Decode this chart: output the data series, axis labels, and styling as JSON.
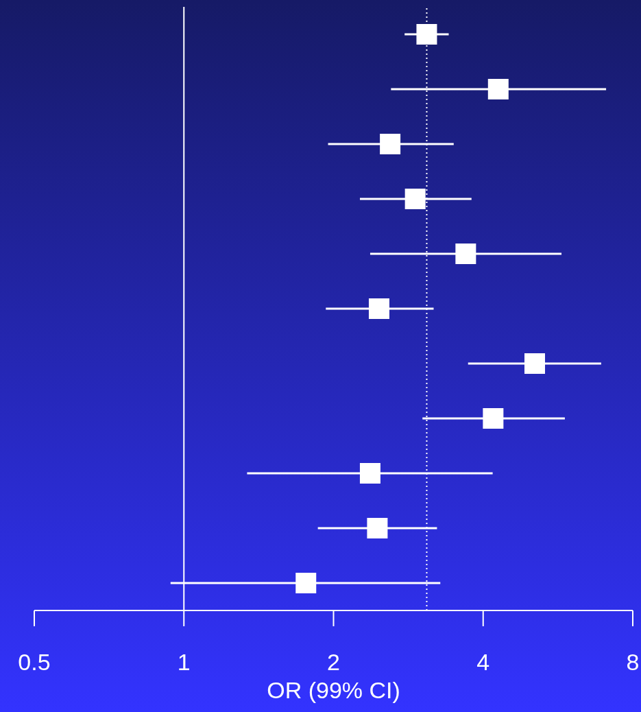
{
  "chart_data": {
    "type": "scatter",
    "orientation": "horizontal",
    "xlabel": "OR (99% CI)",
    "categories": [
      null,
      null,
      null,
      null,
      null,
      null,
      null,
      null,
      null,
      null,
      null
    ],
    "values": [
      3.08,
      4.29,
      2.6,
      2.92,
      3.69,
      2.47,
      5.08,
      4.19,
      2.37,
      2.45,
      1.76
    ],
    "errors": [
      [
        2.78,
        3.41
      ],
      [
        2.61,
        7.07
      ],
      [
        1.95,
        3.49
      ],
      [
        2.26,
        3.79
      ],
      [
        2.37,
        5.75
      ],
      [
        1.93,
        3.18
      ],
      [
        3.73,
        6.91
      ],
      [
        3.02,
        5.84
      ],
      [
        1.34,
        4.18
      ],
      [
        1.86,
        3.23
      ],
      [
        0.94,
        3.28
      ]
    ],
    "color": "#ffffff",
    "marker": "square",
    "log": "x",
    "xlim": [
      0.5,
      8
    ],
    "xticks": [
      0.5,
      1,
      2,
      4,
      8
    ],
    "ref_lines": [
      {
        "axis": "x",
        "value": 1,
        "line_style": "solid",
        "color": "#ffffff"
      },
      {
        "axis": "x",
        "value": 3.08,
        "line_style": "dotted",
        "color": "#ffffff"
      }
    ],
    "grid": false,
    "legend": false
  }
}
